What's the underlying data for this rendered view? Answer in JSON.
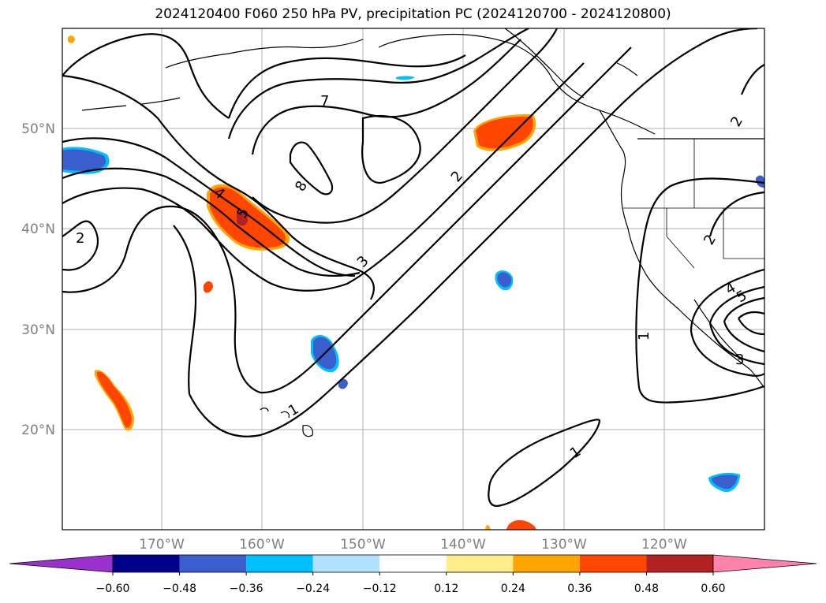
{
  "title": "2024120400 F060 250 hPa PV, precipitation PC (2024120700 - 2024120800)",
  "latitude_labels": [
    "50°N",
    "40°N",
    "30°N",
    "20°N"
  ],
  "longitude_labels": [
    "170°W",
    "160°W",
    "150°W",
    "140°W",
    "130°W",
    "120°W"
  ],
  "contour_labels": [
    "1",
    "1",
    "1",
    "2",
    "2",
    "2",
    "2",
    "3",
    "3",
    "4",
    "4",
    "5",
    "5",
    "7",
    "8"
  ],
  "colorbar": {
    "ticks": [
      "−0.60",
      "−0.48",
      "−0.36",
      "−0.24",
      "−0.12",
      "0.12",
      "0.24",
      "0.36",
      "0.48",
      "0.60"
    ],
    "colors": [
      "#9932cc",
      "#00008b",
      "#3a5fcd",
      "#00bfff",
      "#b0e2ff",
      "#ffffff",
      "#ffec8b",
      "#ffa500",
      "#ff4500",
      "#b22222",
      "#ff82ab",
      "#ff82ab"
    ]
  },
  "colors": {
    "positive_anomaly": "#ff4500",
    "negative_anomaly": "#3a5fcd",
    "strong_positive": "#b22222",
    "grid": "#b0b0b0"
  }
}
